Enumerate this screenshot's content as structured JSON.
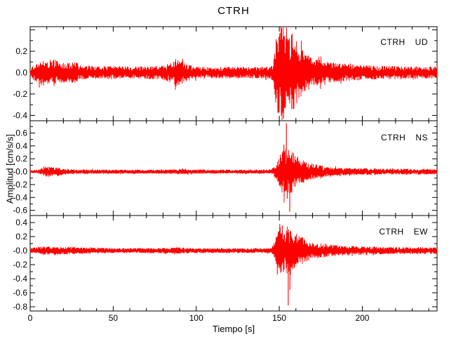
{
  "figure": {
    "background": "#ffffff",
    "axis_color": "#000000",
    "trace_color": "#ff0000"
  },
  "chart_data": {
    "type": "line",
    "title": "CTRH",
    "xlabel": "Tiempo [s]",
    "ylabel": "Amplitud [cm/s/s]",
    "xlim": [
      0,
      245
    ],
    "xticks": [
      {
        "v": 0,
        "label": "0"
      },
      {
        "v": 50,
        "label": "50"
      },
      {
        "v": 100,
        "label": "100"
      },
      {
        "v": 150,
        "label": "150"
      },
      {
        "v": 200,
        "label": "200"
      }
    ],
    "xtick_minor_step": 10,
    "grid": false,
    "panels": [
      {
        "station": "CTRH",
        "component": "UD",
        "ylim": [
          -0.45,
          0.43
        ],
        "yticks": [
          {
            "v": 0.4,
            "label": ""
          },
          {
            "v": 0.2,
            "label": "0.2"
          },
          {
            "v": 0.0,
            "label": "0.0"
          },
          {
            "v": -0.2,
            "label": "-0.2"
          },
          {
            "v": -0.4,
            "label": "-0.4"
          }
        ],
        "ytick_minor_step": 0.1,
        "seed": 11,
        "envelope": [
          [
            0,
            0.03
          ],
          [
            2,
            0.07
          ],
          [
            5,
            0.085
          ],
          [
            8,
            0.12
          ],
          [
            11,
            0.095
          ],
          [
            14,
            0.12
          ],
          [
            17,
            0.09
          ],
          [
            22,
            0.08
          ],
          [
            27,
            0.09
          ],
          [
            32,
            0.06
          ],
          [
            40,
            0.05
          ],
          [
            50,
            0.055
          ],
          [
            60,
            0.05
          ],
          [
            70,
            0.05
          ],
          [
            80,
            0.06
          ],
          [
            85,
            0.08
          ],
          [
            88,
            0.115
          ],
          [
            91,
            0.095
          ],
          [
            94,
            0.07
          ],
          [
            100,
            0.05
          ],
          [
            110,
            0.045
          ],
          [
            120,
            0.05
          ],
          [
            130,
            0.045
          ],
          [
            140,
            0.048
          ],
          [
            145,
            0.05
          ],
          [
            146.5,
            0.09
          ],
          [
            148,
            0.3
          ],
          [
            150,
            0.4
          ],
          [
            152,
            0.42
          ],
          [
            154,
            0.3
          ],
          [
            156,
            0.28
          ],
          [
            158,
            0.33
          ],
          [
            160,
            0.26
          ],
          [
            163,
            0.2
          ],
          [
            166,
            0.16
          ],
          [
            170,
            0.12
          ],
          [
            175,
            0.1
          ],
          [
            180,
            0.085
          ],
          [
            190,
            0.07
          ],
          [
            200,
            0.06
          ],
          [
            215,
            0.055
          ],
          [
            230,
            0.05
          ],
          [
            245,
            0.048
          ]
        ],
        "spikes": [
          [
            149.5,
            -0.38
          ],
          [
            150.8,
            0.37
          ],
          [
            152.6,
            -0.43
          ],
          [
            157.5,
            -0.34
          ]
        ]
      },
      {
        "station": "CTRH",
        "component": "NS",
        "ylim": [
          -0.68,
          0.79
        ],
        "yticks": [
          {
            "v": 0.6,
            "label": "0.6"
          },
          {
            "v": 0.4,
            "label": "0.4"
          },
          {
            "v": 0.2,
            "label": "0.2"
          },
          {
            "v": 0.0,
            "label": "-0.0"
          },
          {
            "v": -0.2,
            "label": "-0.2"
          },
          {
            "v": -0.4,
            "label": "-0.4"
          },
          {
            "v": -0.6,
            "label": "-0.6"
          }
        ],
        "ytick_minor_step": 0.1,
        "seed": 23,
        "envelope": [
          [
            0,
            0.02
          ],
          [
            5,
            0.025
          ],
          [
            8,
            0.055
          ],
          [
            10,
            0.075
          ],
          [
            13,
            0.06
          ],
          [
            16,
            0.065
          ],
          [
            20,
            0.04
          ],
          [
            25,
            0.035
          ],
          [
            30,
            0.03
          ],
          [
            50,
            0.028
          ],
          [
            70,
            0.027
          ],
          [
            90,
            0.033
          ],
          [
            110,
            0.028
          ],
          [
            130,
            0.028
          ],
          [
            145,
            0.03
          ],
          [
            147,
            0.07
          ],
          [
            149,
            0.14
          ],
          [
            151,
            0.26
          ],
          [
            153,
            0.33
          ],
          [
            155,
            0.3
          ],
          [
            157,
            0.31
          ],
          [
            159,
            0.25
          ],
          [
            162,
            0.2
          ],
          [
            165,
            0.15
          ],
          [
            168,
            0.12
          ],
          [
            172,
            0.1
          ],
          [
            178,
            0.07
          ],
          [
            185,
            0.06
          ],
          [
            195,
            0.05
          ],
          [
            210,
            0.042
          ],
          [
            230,
            0.038
          ],
          [
            245,
            0.035
          ]
        ],
        "spikes": [
          [
            152.8,
            0.42
          ],
          [
            154.3,
            0.75
          ],
          [
            154.8,
            -0.42
          ],
          [
            156.3,
            -0.62
          ]
        ]
      },
      {
        "station": "CTRH",
        "component": "EW",
        "ylim": [
          -0.86,
          0.5
        ],
        "yticks": [
          {
            "v": 0.4,
            "label": "0.4"
          },
          {
            "v": 0.2,
            "label": "0.2"
          },
          {
            "v": 0.0,
            "label": "-0.0"
          },
          {
            "v": -0.2,
            "label": "-0.2"
          },
          {
            "v": -0.4,
            "label": "-0.4"
          },
          {
            "v": -0.6,
            "label": "-0.6"
          },
          {
            "v": -0.8,
            "label": "-0.8"
          }
        ],
        "ytick_minor_step": 0.1,
        "seed": 37,
        "envelope": [
          [
            0,
            0.03
          ],
          [
            5,
            0.045
          ],
          [
            8,
            0.055
          ],
          [
            12,
            0.048
          ],
          [
            16,
            0.055
          ],
          [
            20,
            0.045
          ],
          [
            25,
            0.048
          ],
          [
            30,
            0.04
          ],
          [
            40,
            0.035
          ],
          [
            60,
            0.03
          ],
          [
            80,
            0.033
          ],
          [
            88,
            0.042
          ],
          [
            95,
            0.034
          ],
          [
            110,
            0.03
          ],
          [
            130,
            0.03
          ],
          [
            145,
            0.03
          ],
          [
            147,
            0.1
          ],
          [
            149,
            0.23
          ],
          [
            151,
            0.3
          ],
          [
            153,
            0.27
          ],
          [
            155,
            0.3
          ],
          [
            157,
            0.25
          ],
          [
            160,
            0.22
          ],
          [
            163,
            0.18
          ],
          [
            166,
            0.14
          ],
          [
            170,
            0.11
          ],
          [
            175,
            0.09
          ],
          [
            182,
            0.072
          ],
          [
            190,
            0.06
          ],
          [
            200,
            0.052
          ],
          [
            215,
            0.046
          ],
          [
            230,
            0.042
          ],
          [
            245,
            0.04
          ]
        ],
        "spikes": [
          [
            148.8,
            -0.34
          ],
          [
            150.3,
            0.38
          ],
          [
            151.8,
            0.36
          ],
          [
            155.4,
            -0.78
          ],
          [
            156.4,
            -0.56
          ]
        ]
      }
    ]
  }
}
